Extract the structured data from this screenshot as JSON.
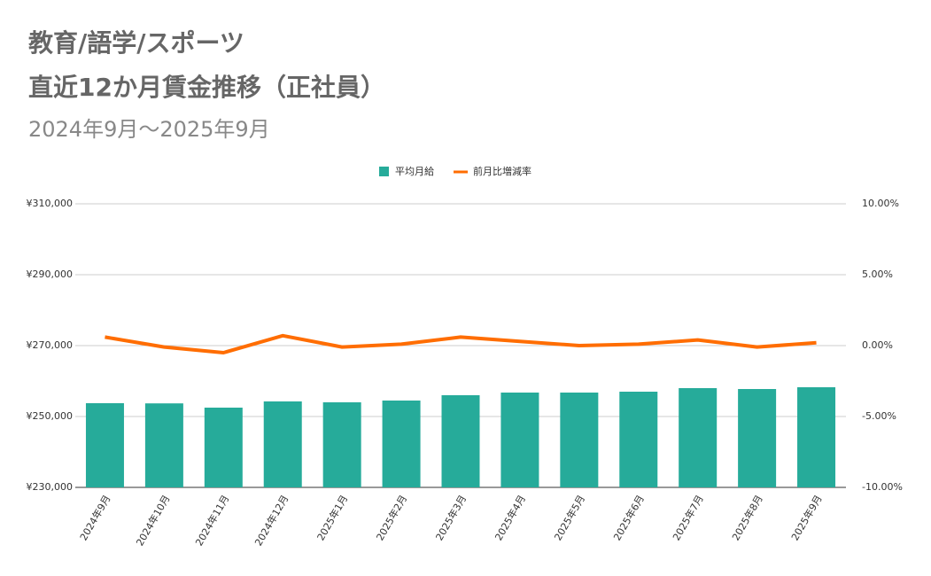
{
  "chart_data": {
    "type": "bar-line",
    "title": [
      "教育/語学/スポーツ",
      "直近12か月賃金推移（正社員）"
    ],
    "subtitle": "2024年9月～2025年9月",
    "categories": [
      "2024年9月",
      "2024年10月",
      "2024年11月",
      "2024年12月",
      "2025年1月",
      "2025年2月",
      "2025年3月",
      "2025年4月",
      "2025年5月",
      "2025年6月",
      "2025年7月",
      "2025年8月",
      "2025年9月"
    ],
    "series": [
      {
        "name": "平均月給",
        "type": "bar",
        "color": "#26ab9a",
        "values": [
          253750,
          253700,
          252500,
          254250,
          254000,
          254500,
          256000,
          256750,
          256750,
          257000,
          258000,
          257750,
          258250
        ]
      },
      {
        "name": "前月比増減率",
        "type": "line",
        "axis": "y2",
        "color": "#ff6d01",
        "values": [
          0.6,
          -0.1,
          -0.5,
          0.7,
          -0.1,
          0.1,
          0.6,
          0.3,
          0.0,
          0.1,
          0.4,
          -0.1,
          0.2
        ]
      }
    ],
    "ylim": [
      230000,
      310000
    ],
    "yticks": [
      {
        "value": 230000,
        "label": "¥230,000"
      },
      {
        "value": 250000,
        "label": "¥250,000"
      },
      {
        "value": 270000,
        "label": "¥270,000"
      },
      {
        "value": 290000,
        "label": "¥290,000"
      },
      {
        "value": 310000,
        "label": "¥310,000"
      }
    ],
    "y2lim": [
      -10,
      10
    ],
    "y2ticks": [
      {
        "value": -10,
        "label": "-10.00%"
      },
      {
        "value": -5,
        "label": "-5.00%"
      },
      {
        "value": 0,
        "label": "0.00%"
      },
      {
        "value": 5,
        "label": "5.00%"
      },
      {
        "value": 10,
        "label": "10.00%"
      }
    ],
    "grid": true,
    "legend": "top"
  }
}
